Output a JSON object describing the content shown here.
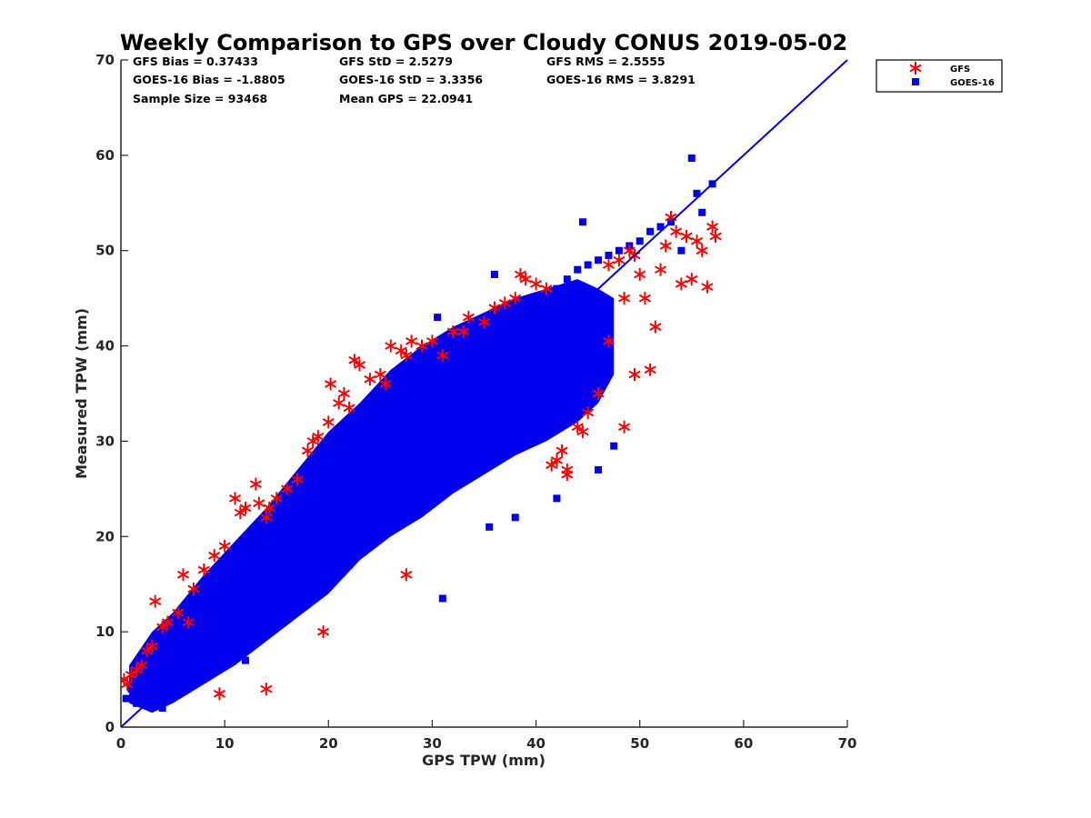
{
  "chart_data": {
    "type": "scatter",
    "title": "Weekly Comparison to GPS over Cloudy CONUS 2019-05-02",
    "xlabel": "GPS TPW (mm)",
    "ylabel": "Measured TPW (mm)",
    "xlim": [
      0,
      70
    ],
    "ylim": [
      0,
      70
    ],
    "xticks": [
      "0",
      "10",
      "20",
      "30",
      "40",
      "50",
      "60",
      "70"
    ],
    "yticks": [
      "0",
      "10",
      "20",
      "30",
      "40",
      "50",
      "60",
      "70"
    ],
    "grid": false,
    "legend_position": "outside-top-right",
    "reference_line": {
      "x": [
        0,
        70
      ],
      "y": [
        0,
        70
      ],
      "color": "#0000ee"
    },
    "stats": [
      [
        "GFS Bias = 0.37433",
        "GFS StD = 2.5279",
        "GFS RMS = 2.5555"
      ],
      [
        "GOES-16 Bias = -1.8805",
        "GOES-16 StD = 3.3356",
        "GOES-16 RMS = 3.8291"
      ],
      [
        "Sample Size = 93468",
        "Mean GPS = 22.0941",
        ""
      ]
    ],
    "series": [
      {
        "name": "GFS",
        "marker": "asterisk",
        "color": "#ff0000",
        "x": [
          0.3,
          0.6,
          1.0,
          1.5,
          2.0,
          2.5,
          3.0,
          3.3,
          4.0,
          4.5,
          5.5,
          6.0,
          6.5,
          7.0,
          8.0,
          9.0,
          10.0,
          11.0,
          11.5,
          12.0,
          13.0,
          13.3,
          14.0,
          14.3,
          15.0,
          16.0,
          17.0,
          18.0,
          18.5,
          19.0,
          20.0,
          20.2,
          21.0,
          21.5,
          22.0,
          22.5,
          23.0,
          24.0,
          25.0,
          25.5,
          26.0,
          27.0,
          27.5,
          28.0,
          29.0,
          30.0,
          31.0,
          32.0,
          33.0,
          33.5,
          35.0,
          36.0,
          37.0,
          38.0,
          38.5,
          39.0,
          40.0,
          41.0,
          41.5,
          42.0,
          43.0,
          44.0,
          45.0,
          46.0,
          47.0,
          48.0,
          48.5,
          49.0,
          49.5,
          50.0,
          50.5,
          51.0,
          51.5,
          52.0,
          52.5,
          53.0,
          53.5,
          54.0,
          54.5,
          55.0,
          55.5,
          56.0,
          56.5,
          57.0,
          57.3,
          14.0,
          19.5,
          9.5,
          27.5,
          42.5,
          43.0,
          44.5,
          47.0,
          48.5,
          49.5
        ],
        "y": [
          5.0,
          4.5,
          5.5,
          6.0,
          6.5,
          8.0,
          8.5,
          13.2,
          10.5,
          11.0,
          12.0,
          16.0,
          11.0,
          14.5,
          16.5,
          18.0,
          19.0,
          24.0,
          22.5,
          23.0,
          25.5,
          23.5,
          22.0,
          23.0,
          24.0,
          25.0,
          26.0,
          29.0,
          30.0,
          30.5,
          32.0,
          36.0,
          34.0,
          35.0,
          33.5,
          38.5,
          38.0,
          36.5,
          37.0,
          36.0,
          40.0,
          39.5,
          39.0,
          40.5,
          40.0,
          40.5,
          39.0,
          41.5,
          41.5,
          43.0,
          42.5,
          44.0,
          44.5,
          45.0,
          47.5,
          47.0,
          46.5,
          46.0,
          27.5,
          28.0,
          27.0,
          31.5,
          33.0,
          35.0,
          48.5,
          49.0,
          31.5,
          50.0,
          49.5,
          47.5,
          45.0,
          37.5,
          42.0,
          48.0,
          50.5,
          53.5,
          52.0,
          46.5,
          51.5,
          47.0,
          51.0,
          50.0,
          46.2,
          52.5,
          51.5,
          4.0,
          10.0,
          3.5,
          16.0,
          29.0,
          26.5,
          31.0,
          40.5,
          45.0,
          37.0
        ]
      },
      {
        "name": "GOES-16",
        "marker": "square",
        "color": "#0000ee",
        "x": [
          0.5,
          1.0,
          1.5,
          2.0,
          2.5,
          3.0,
          3.5,
          4.0,
          4.5,
          5.0,
          5.5,
          6.0,
          7.0,
          8.0,
          9.0,
          10.0,
          11.0,
          12.0,
          13.0,
          14.0,
          15.0,
          16.0,
          17.0,
          18.0,
          19.0,
          20.0,
          21.0,
          22.0,
          23.0,
          24.0,
          25.0,
          26.0,
          27.0,
          28.0,
          29.0,
          30.0,
          31.0,
          32.0,
          33.0,
          34.0,
          35.0,
          36.0,
          37.0,
          38.0,
          39.0,
          40.0,
          41.0,
          42.0,
          43.0,
          44.0,
          45.0,
          46.0,
          47.0,
          48.0,
          49.0,
          50.0,
          51.0,
          52.0,
          53.0,
          54.0,
          55.0,
          55.5,
          56.0,
          57.0,
          12.0,
          18.0,
          22.0,
          31.0,
          35.5,
          38.0,
          42.0,
          46.0,
          47.5,
          30.5,
          36.0,
          44.5
        ],
        "y": [
          3.0,
          4.0,
          2.5,
          3.5,
          5.0,
          4.5,
          6.0,
          2.0,
          7.0,
          5.5,
          8.0,
          7.5,
          9.0,
          10.5,
          11.5,
          12.5,
          13.5,
          15.0,
          16.0,
          17.5,
          18.5,
          19.5,
          20.5,
          22.0,
          23.0,
          24.0,
          25.5,
          26.0,
          27.0,
          28.5,
          29.5,
          30.5,
          31.5,
          32.5,
          33.5,
          34.5,
          36.0,
          37.0,
          38.5,
          39.0,
          40.0,
          41.0,
          42.5,
          43.0,
          44.0,
          45.0,
          45.5,
          46.0,
          47.0,
          48.0,
          48.5,
          49.0,
          49.5,
          50.0,
          50.5,
          51.0,
          52.0,
          52.5,
          53.0,
          50.0,
          59.7,
          56.0,
          54.0,
          57.0,
          7.0,
          13.0,
          17.0,
          13.5,
          21.0,
          22.0,
          24.0,
          27.0,
          29.5,
          43.0,
          47.5,
          53.0
        ]
      }
    ]
  }
}
